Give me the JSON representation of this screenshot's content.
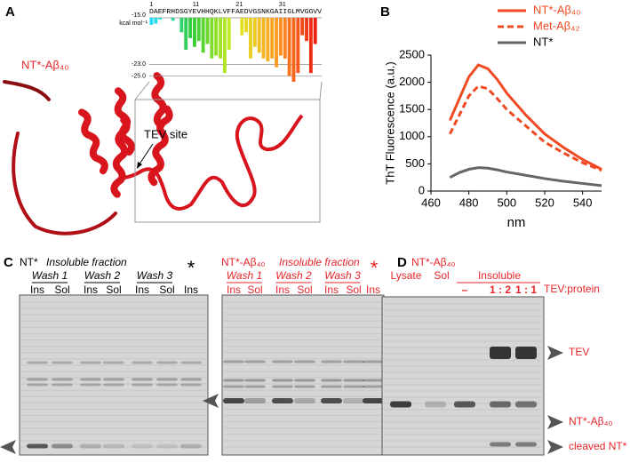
{
  "panel_a": {
    "label": "A",
    "construct": "NT*-Aβ₄₀",
    "site_label": "TEV site"
  },
  "panel_b": {
    "label": "B"
  },
  "chart_data": [
    {
      "type": "bar",
      "sequence": "DAEFRHDSGYEVHHQKLVFFAEDVGSNKGAIIGLMVGGVV",
      "ylabel": "kcal mol⁻¹",
      "values": [
        -16.2,
        -16.0,
        -15.3,
        null,
        null,
        -15.5,
        null,
        -17.5,
        -20.5,
        -18.5,
        -20.0,
        -19.0,
        -21.0,
        -19.5,
        -22.0,
        -21.5,
        -22.0,
        -24.5,
        -20.5,
        null,
        null,
        -18.0,
        -17.5,
        -22.0,
        -20.0,
        -21.0,
        -22.0,
        -22.5,
        -22.0,
        -23.5,
        -21.5,
        -22.0,
        -25.0,
        -26.0,
        -24.5,
        -18.0,
        -19.0,
        -24.5,
        -19.5,
        null
      ],
      "colormap": [
        "#22ddff",
        "#33cc33",
        "#ddee22",
        "#ff9922",
        "#ee1111"
      ],
      "xlim": [
        0.5,
        40.5
      ],
      "xticks": [
        1,
        11,
        21,
        31
      ],
      "ylim": [
        -26,
        -15
      ],
      "yticks": [
        {
          "value": -15,
          "label": "-15.0"
        },
        {
          "value": -23,
          "label": "-23.0"
        },
        {
          "value": -25,
          "label": "-25.0"
        }
      ]
    },
    {
      "type": "line",
      "xlabel": "nm",
      "ylabel": "ThT Fluorescence (a.u.)",
      "x": [
        470,
        475,
        480,
        485,
        490,
        495,
        500,
        510,
        520,
        530,
        540,
        550
      ],
      "series": [
        {
          "name": "NT*-Aβ₄₀",
          "color": "#f04a23",
          "linestyle": "solid",
          "values": [
            1300,
            1700,
            2100,
            2320,
            2250,
            2050,
            1800,
            1400,
            1050,
            800,
            580,
            400
          ]
        },
        {
          "name": "Met-Aβ₄₂",
          "color": "#f04a23",
          "linestyle": "dashed",
          "values": [
            1050,
            1400,
            1750,
            1930,
            1880,
            1700,
            1500,
            1200,
            900,
            700,
            520,
            380
          ]
        },
        {
          "name": "NT*",
          "color": "#666666",
          "linestyle": "solid",
          "values": [
            250,
            340,
            400,
            430,
            420,
            390,
            350,
            290,
            230,
            180,
            140,
            100
          ]
        }
      ],
      "xlim": [
        460,
        550
      ],
      "xticks": [
        460,
        480,
        500,
        520,
        540
      ],
      "ylim": [
        0,
        2500
      ],
      "yticks": [
        0,
        500,
        1000,
        1500,
        2000,
        2500
      ]
    }
  ],
  "panel_c": {
    "label": "C",
    "left": {
      "title": "NT*",
      "subtitle": "Insoluble fraction",
      "washes": [
        "Wash 1",
        "Wash 2",
        "Wash 3"
      ],
      "lanes": [
        "Ins",
        "Sol",
        "Ins",
        "Sol",
        "Ins",
        "Sol",
        "Ins"
      ],
      "marker": "*"
    },
    "right": {
      "title": "NT*-Aβ₄₀",
      "subtitle": "Insoluble fraction",
      "washes": [
        "Wash 1",
        "Wash 2",
        "Wash 3"
      ],
      "lanes": [
        "Ins",
        "Sol",
        "Ins",
        "Sol",
        "Ins",
        "Sol",
        "Ins"
      ],
      "marker": "*"
    }
  },
  "panel_d": {
    "label": "D",
    "title": "NT*-Aβ₄₀",
    "lanes": [
      "Lysate",
      "Sol"
    ],
    "group": "Insoluble",
    "ratios": [
      "–",
      "1 : 2",
      "1 : 1"
    ],
    "ratio_label": "TEV:protein",
    "bands": [
      "TEV",
      "NT*-Aβ₄₀",
      "cleaved NT*"
    ]
  }
}
